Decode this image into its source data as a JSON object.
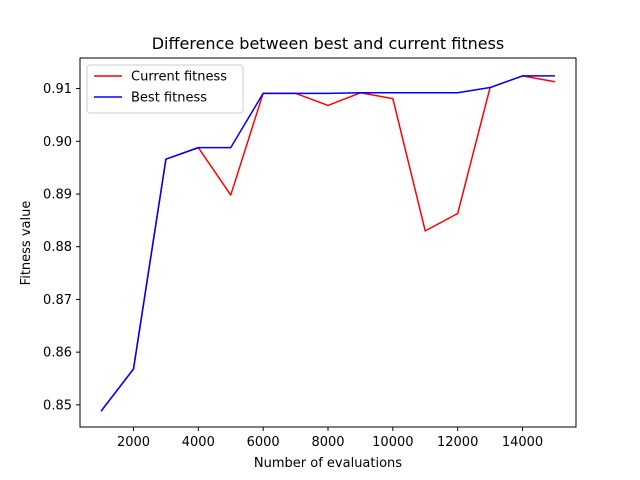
{
  "chart_data": {
    "type": "line",
    "title": "Difference between best and current fitness",
    "xlabel": "Number of evaluations",
    "ylabel": "Fitness value",
    "xlim": [
      350,
      15650
    ],
    "ylim": [
      0.8458,
      0.9158
    ],
    "x_ticks": [
      2000,
      4000,
      6000,
      8000,
      10000,
      12000,
      14000
    ],
    "x_tick_labels": [
      "2000",
      "4000",
      "6000",
      "8000",
      "10000",
      "12000",
      "14000"
    ],
    "y_ticks": [
      0.85,
      0.86,
      0.87,
      0.88,
      0.89,
      0.9,
      0.91
    ],
    "y_tick_labels": [
      "0.85",
      "0.86",
      "0.87",
      "0.88",
      "0.89",
      "0.90",
      "0.91"
    ],
    "grid": false,
    "legend_position": "top-left",
    "x": [
      1000,
      2000,
      3000,
      4000,
      5000,
      6000,
      7000,
      8000,
      9000,
      10000,
      11000,
      12000,
      13000,
      14000,
      15000
    ],
    "series": [
      {
        "name": "Current fitness",
        "color": "#ff0000",
        "values": [
          0.8488,
          0.8568,
          0.8966,
          0.8988,
          0.8898,
          0.9091,
          0.9091,
          0.9068,
          0.9092,
          0.9081,
          0.883,
          0.8863,
          0.9102,
          0.9124,
          0.9113
        ]
      },
      {
        "name": "Best fitness",
        "color": "#0000ff",
        "values": [
          0.8488,
          0.8568,
          0.8966,
          0.8988,
          0.8988,
          0.9091,
          0.9091,
          0.9091,
          0.9092,
          0.9092,
          0.9092,
          0.9092,
          0.9102,
          0.9124,
          0.9124
        ]
      }
    ]
  }
}
